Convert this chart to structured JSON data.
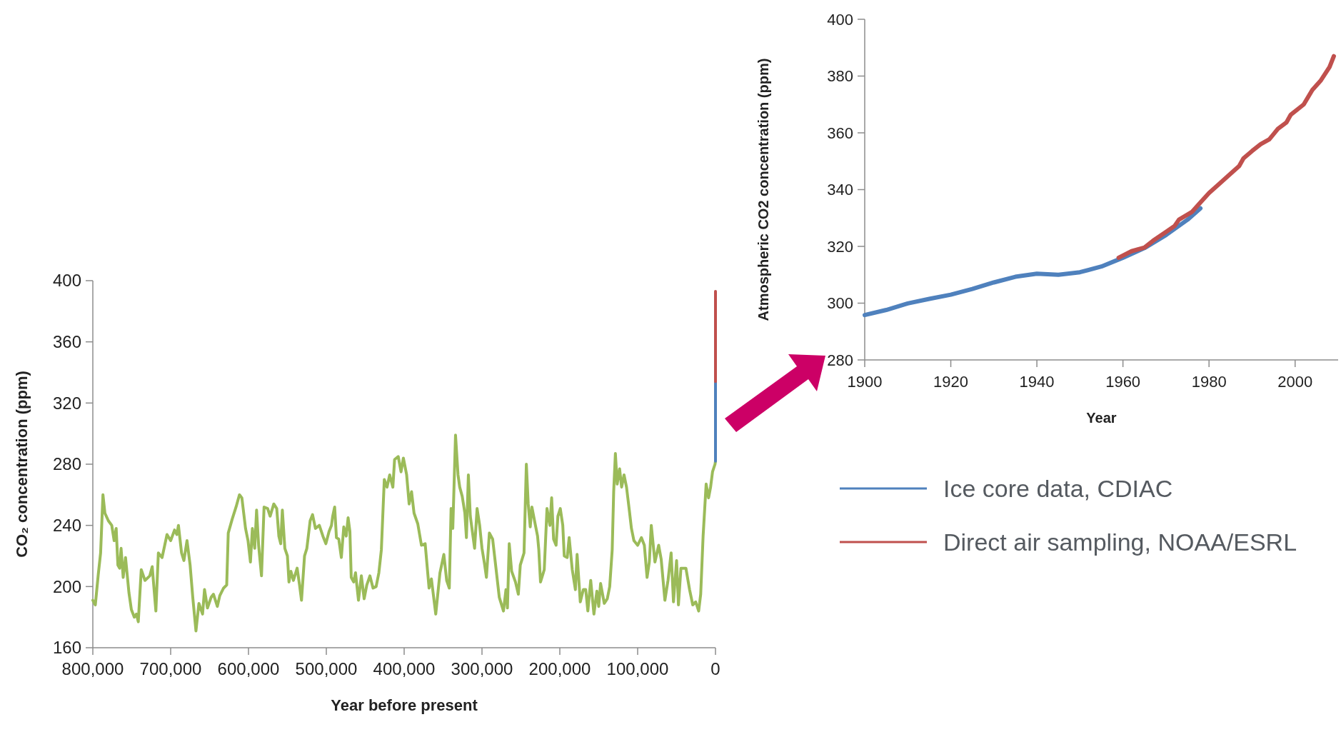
{
  "chart_data": [
    {
      "type": "line",
      "xlabel": "Year before present",
      "ylabel": "CO₂ concentration (ppm)",
      "xlim": [
        800000,
        0
      ],
      "ylim": [
        160,
        400
      ],
      "xticks": [
        {
          "value": 800000,
          "label": "800,000"
        },
        {
          "value": 700000,
          "label": "700,000"
        },
        {
          "value": 600000,
          "label": "600,000"
        },
        {
          "value": 500000,
          "label": "500,000"
        },
        {
          "value": 400000,
          "label": "400,000"
        },
        {
          "value": 300000,
          "label": "300,000"
        },
        {
          "value": 200000,
          "label": "200,000"
        },
        {
          "value": 100000,
          "label": "100,000"
        },
        0
      ],
      "yticks": [
        160,
        200,
        240,
        280,
        320,
        360,
        400
      ],
      "grid": false,
      "legend": false,
      "series": [
        {
          "color": "#9bbb59",
          "x": [
            800000,
            796800,
            793000,
            790000,
            787000,
            784500,
            780000,
            775700,
            772600,
            770000,
            767800,
            765600,
            763700,
            761000,
            758000,
            753600,
            750500,
            746700,
            744000,
            741600,
            737800,
            733000,
            726800,
            723700,
            719000,
            715800,
            711000,
            704700,
            700000,
            695000,
            692000,
            690000,
            686000,
            683000,
            679000,
            675000,
            671600,
            667500,
            663700,
            659000,
            656500,
            652700,
            648000,
            645000,
            640000,
            636900,
            632000,
            628000,
            626000,
            621000,
            616000,
            611600,
            608500,
            603800,
            600600,
            597500,
            595000,
            592000,
            589600,
            587000,
            583300,
            580000,
            575400,
            572200,
            567500,
            563700,
            561000,
            558600,
            556500,
            553300,
            550000,
            548000,
            545500,
            542300,
            537500,
            534400,
            531900,
            528000,
            525000,
            520800,
            517700,
            514000,
            509000,
            504400,
            500600,
            496500,
            493400,
            491800,
            489300,
            487000,
            484000,
            480700,
            477600,
            474400,
            472000,
            469700,
            468000,
            464900,
            462500,
            458700,
            455000,
            451400,
            448000,
            444000,
            440000,
            436000,
            432500,
            429300,
            427000,
            425500,
            422000,
            418600,
            414500,
            412300,
            407600,
            404000,
            401000,
            396800,
            393600,
            390500,
            387300,
            382500,
            377800,
            373000,
            368000,
            365000,
            359400,
            354000,
            349000,
            345400,
            342000,
            339700,
            337500,
            334000,
            330800,
            328600,
            325400,
            322000,
            320000,
            317500,
            315000,
            309500,
            306300,
            303000,
            300000,
            296800,
            294300,
            290500,
            286300,
            282500,
            277800,
            272400,
            269200,
            267300,
            265000,
            261900,
            257000,
            253300,
            250800,
            246000,
            243000,
            240600,
            238000,
            235900,
            231700,
            228600,
            227000,
            224800,
            220000,
            216500,
            212700,
            210500,
            208000,
            204800,
            202500,
            199400,
            196200,
            194300,
            190500,
            188000,
            184000,
            180000,
            177800,
            173700,
            169800,
            166700,
            164000,
            160300,
            156200,
            152400,
            150000,
            147600,
            142900,
            139000,
            135900,
            132700,
            130800,
            128600,
            126300,
            123200,
            120600,
            117500,
            114300,
            110500,
            108000,
            104800,
            100000,
            95200,
            91400,
            87900,
            85000,
            82500,
            77800,
            73000,
            69800,
            65000,
            61000,
            57000,
            54000,
            50000,
            47600,
            44400,
            38000,
            33300,
            29200,
            25400,
            21600,
            19000,
            15900,
            12000,
            8900,
            6300,
            3800,
            600,
            0
          ],
          "values": [
            191,
            188,
            208,
            222,
            260,
            248,
            243,
            240,
            230,
            238,
            214,
            212,
            225,
            206,
            219,
            196,
            185,
            180,
            182,
            177,
            211,
            204,
            207,
            213,
            184,
            222,
            219,
            234,
            230,
            237,
            234,
            240,
            222,
            217,
            230,
            214,
            193,
            171,
            189,
            182,
            198,
            186,
            193,
            195,
            187,
            194,
            199,
            201,
            235,
            244,
            252,
            260,
            258,
            238,
            230,
            216,
            238,
            225,
            250,
            227,
            207,
            252,
            251,
            246,
            254,
            251,
            233,
            228,
            250,
            225,
            220,
            203,
            210,
            204,
            212,
            201,
            191,
            220,
            225,
            243,
            247,
            238,
            240,
            233,
            228,
            236,
            240,
            246,
            252,
            232,
            231,
            219,
            239,
            233,
            245,
            236,
            206,
            203,
            209,
            191,
            207,
            192,
            201,
            207,
            199,
            200,
            209,
            224,
            252,
            270,
            265,
            273,
            265,
            283,
            285,
            275,
            284,
            273,
            254,
            262,
            248,
            241,
            227,
            228,
            199,
            205,
            182,
            209,
            221,
            204,
            199,
            251,
            238,
            299,
            273,
            265,
            259,
            248,
            232,
            273,
            246,
            225,
            251,
            240,
            225,
            215,
            206,
            235,
            231,
            214,
            193,
            184,
            198,
            186,
            228,
            210,
            203,
            195,
            214,
            222,
            280,
            254,
            239,
            252,
            241,
            233,
            224,
            203,
            211,
            251,
            240,
            258,
            231,
            227,
            246,
            251,
            240,
            220,
            219,
            232,
            211,
            198,
            221,
            190,
            198,
            198,
            184,
            204,
            182,
            197,
            187,
            202,
            189,
            192,
            200,
            224,
            262,
            287,
            267,
            277,
            265,
            273,
            265,
            249,
            238,
            230,
            227,
            232,
            227,
            206,
            216,
            240,
            216,
            227,
            218,
            191,
            204,
            222,
            190,
            217,
            188,
            212,
            212,
            198,
            188,
            190,
            184,
            195,
            233,
            267,
            258,
            265,
            275,
            280,
            282
          ]
        },
        {
          "color": "#4f81bd",
          "x": [
            0,
            0
          ],
          "values": [
            282,
            334
          ]
        },
        {
          "color": "#c0504d",
          "x": [
            0,
            0
          ],
          "values": [
            334,
            393
          ]
        }
      ]
    },
    {
      "type": "line",
      "xlabel": "Year",
      "ylabel": "Atmospheric CO2 concentration (ppm)",
      "xlim": [
        1900,
        2010
      ],
      "ylim": [
        280,
        400
      ],
      "xticks": [
        1900,
        1920,
        1940,
        1960,
        1980,
        2000
      ],
      "yticks": [
        280,
        300,
        320,
        340,
        360,
        380,
        400
      ],
      "grid": false,
      "legend": "bottom",
      "series": [
        {
          "name": "Ice core data, CDIAC",
          "color": "#4f81bd",
          "x": [
            1900,
            1905,
            1910,
            1915,
            1920,
            1925,
            1930,
            1935,
            1940,
            1945,
            1950,
            1955,
            1960,
            1965,
            1970,
            1975,
            1978
          ],
          "values": [
            295.8,
            297.6,
            299.9,
            301.5,
            303,
            305,
            307.3,
            309.3,
            310.4,
            310,
            310.9,
            312.9,
            316,
            319.4,
            324,
            329.4,
            333.4
          ]
        },
        {
          "name": "Direct air sampling, NOAA/ESRL",
          "color": "#c0504d",
          "x": [
            1959,
            1962,
            1965,
            1967,
            1970,
            1972,
            1973,
            1976,
            1978,
            1980,
            1982,
            1985,
            1987,
            1988,
            1990,
            1992,
            1994,
            1996,
            1998,
            1999,
            2002,
            2004,
            2006,
            2008,
            2009
          ],
          "values": [
            316,
            318.3,
            319.6,
            322,
            325.1,
            327.2,
            329.4,
            332.1,
            335.5,
            338.8,
            341.5,
            345.6,
            348.3,
            351,
            353.6,
            356,
            357.7,
            361.4,
            363.7,
            366.4,
            370,
            375.1,
            378.5,
            383.2,
            387
          ]
        }
      ]
    }
  ]
}
